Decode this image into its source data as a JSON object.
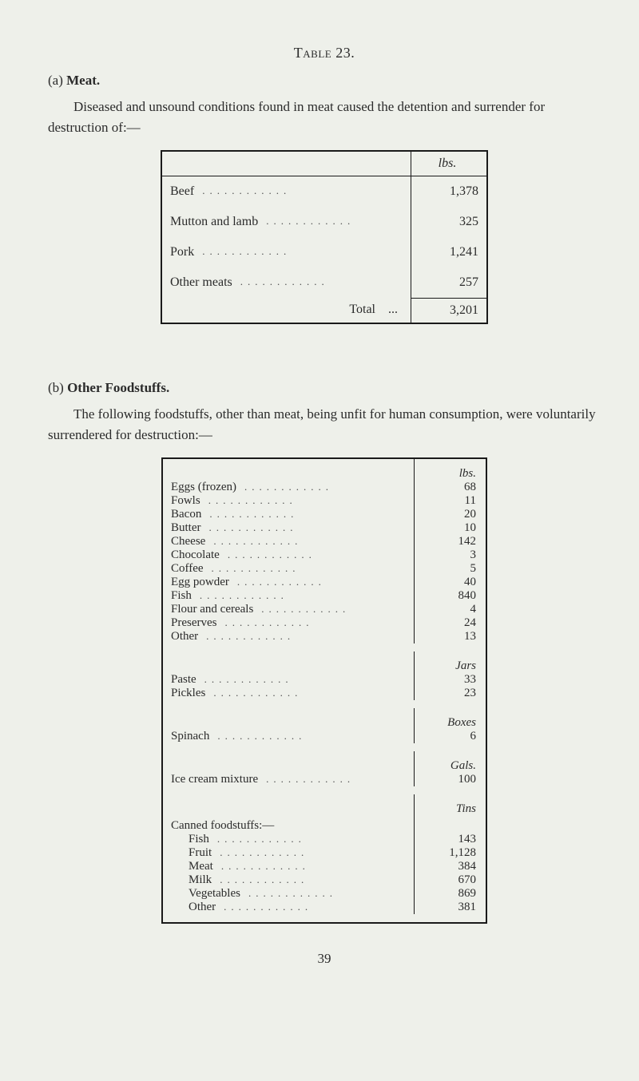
{
  "title": "Table 23.",
  "section_a": {
    "prefix": "(a)",
    "title": "Meat."
  },
  "paragraph_a": "Diseased and unsound conditions found in meat caused the detention and surrender for destruction of:—",
  "meat_table": {
    "unit": "lbs.",
    "rows": [
      {
        "label": "Beef",
        "value": "1,378"
      },
      {
        "label": "Mutton and lamb",
        "value": "325"
      },
      {
        "label": "Pork",
        "value": "1,241"
      },
      {
        "label": "Other meats",
        "value": "257"
      }
    ],
    "total_label": "Total",
    "total_value": "3,201"
  },
  "section_b": {
    "prefix": "(b)",
    "title": "Other Foodstuffs."
  },
  "paragraph_b": "The following foodstuffs, other than meat, being unfit for human consumption, were voluntarily surrendered for destruction:—",
  "foods_table": {
    "groups": [
      {
        "unit": "lbs.",
        "rows": [
          {
            "label": "Eggs (frozen)",
            "value": "68"
          },
          {
            "label": "Fowls",
            "value": "11"
          },
          {
            "label": "Bacon",
            "value": "20"
          },
          {
            "label": "Butter",
            "value": "10"
          },
          {
            "label": "Cheese",
            "value": "142"
          },
          {
            "label": "Chocolate",
            "value": "3"
          },
          {
            "label": "Coffee",
            "value": "5"
          },
          {
            "label": "Egg powder",
            "value": "40"
          },
          {
            "label": "Fish",
            "value": "840"
          },
          {
            "label": "Flour and cereals",
            "value": "4"
          },
          {
            "label": "Preserves",
            "value": "24"
          },
          {
            "label": "Other",
            "value": "13"
          }
        ]
      },
      {
        "unit": "Jars",
        "rows": [
          {
            "label": "Paste",
            "value": "33"
          },
          {
            "label": "Pickles",
            "value": "23"
          }
        ]
      },
      {
        "unit": "Boxes",
        "rows": [
          {
            "label": "Spinach",
            "value": "6"
          }
        ]
      },
      {
        "unit": "Gals.",
        "rows": [
          {
            "label": "Ice cream mixture",
            "value": "100"
          }
        ]
      }
    ],
    "canned": {
      "unit": "Tins",
      "header": "Canned foodstuffs:—",
      "rows": [
        {
          "label": "Fish",
          "value": "143"
        },
        {
          "label": "Fruit",
          "value": "1,128"
        },
        {
          "label": "Meat",
          "value": "384"
        },
        {
          "label": "Milk",
          "value": "670"
        },
        {
          "label": "Vegetables",
          "value": "869"
        },
        {
          "label": "Other",
          "value": "381"
        }
      ]
    }
  },
  "page_number": "39"
}
